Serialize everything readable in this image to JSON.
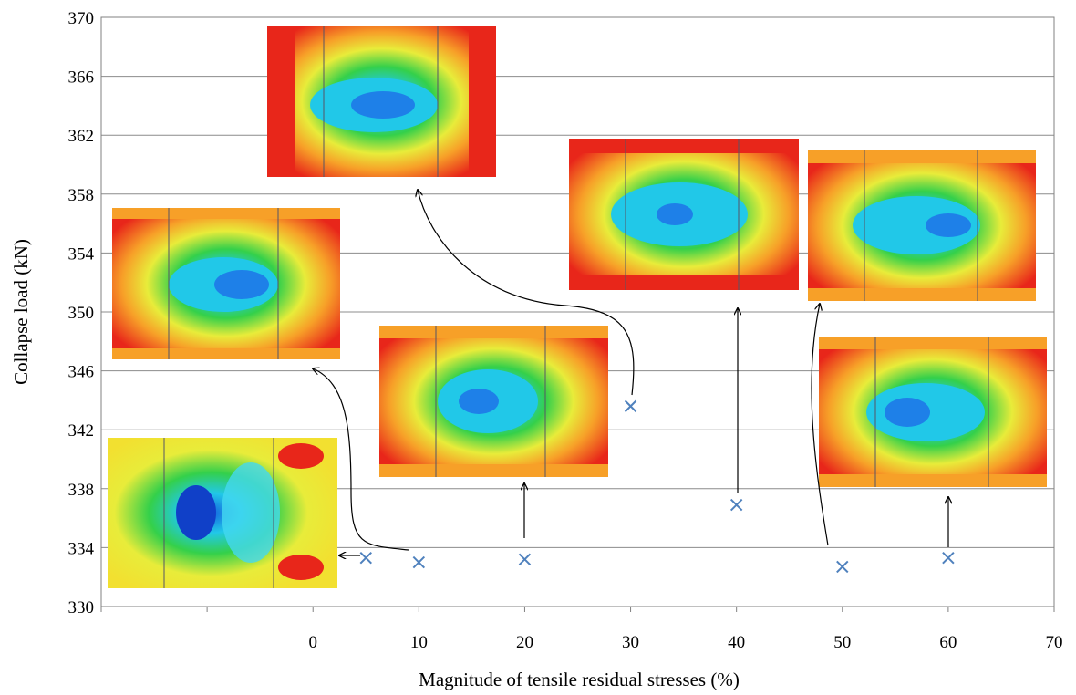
{
  "chart_data": {
    "type": "scatter",
    "xlabel": "Magnitude of tensile residual stresses (%)",
    "ylabel": "Collapse load (kN)",
    "xlim": [
      -20,
      70
    ],
    "ylim": [
      330,
      370
    ],
    "xticks": [
      0,
      10,
      20,
      30,
      40,
      50,
      60,
      70
    ],
    "yticks": [
      330,
      334,
      338,
      342,
      346,
      350,
      354,
      358,
      362,
      366,
      370
    ],
    "grid": "horizontal",
    "legend": "none",
    "marker": "x",
    "marker_color": "#4f81bd",
    "points": [
      {
        "x": 5,
        "y": 333.3
      },
      {
        "x": 10,
        "y": 333.0
      },
      {
        "x": 20,
        "y": 333.2
      },
      {
        "x": 30,
        "y": 343.6
      },
      {
        "x": 40,
        "y": 336.9
      },
      {
        "x": 50,
        "y": 332.7
      },
      {
        "x": 60,
        "y": 333.3
      }
    ],
    "annotations": "contour-plot insets showing buckled panel shapes, each linked to a data point by an arrow"
  }
}
